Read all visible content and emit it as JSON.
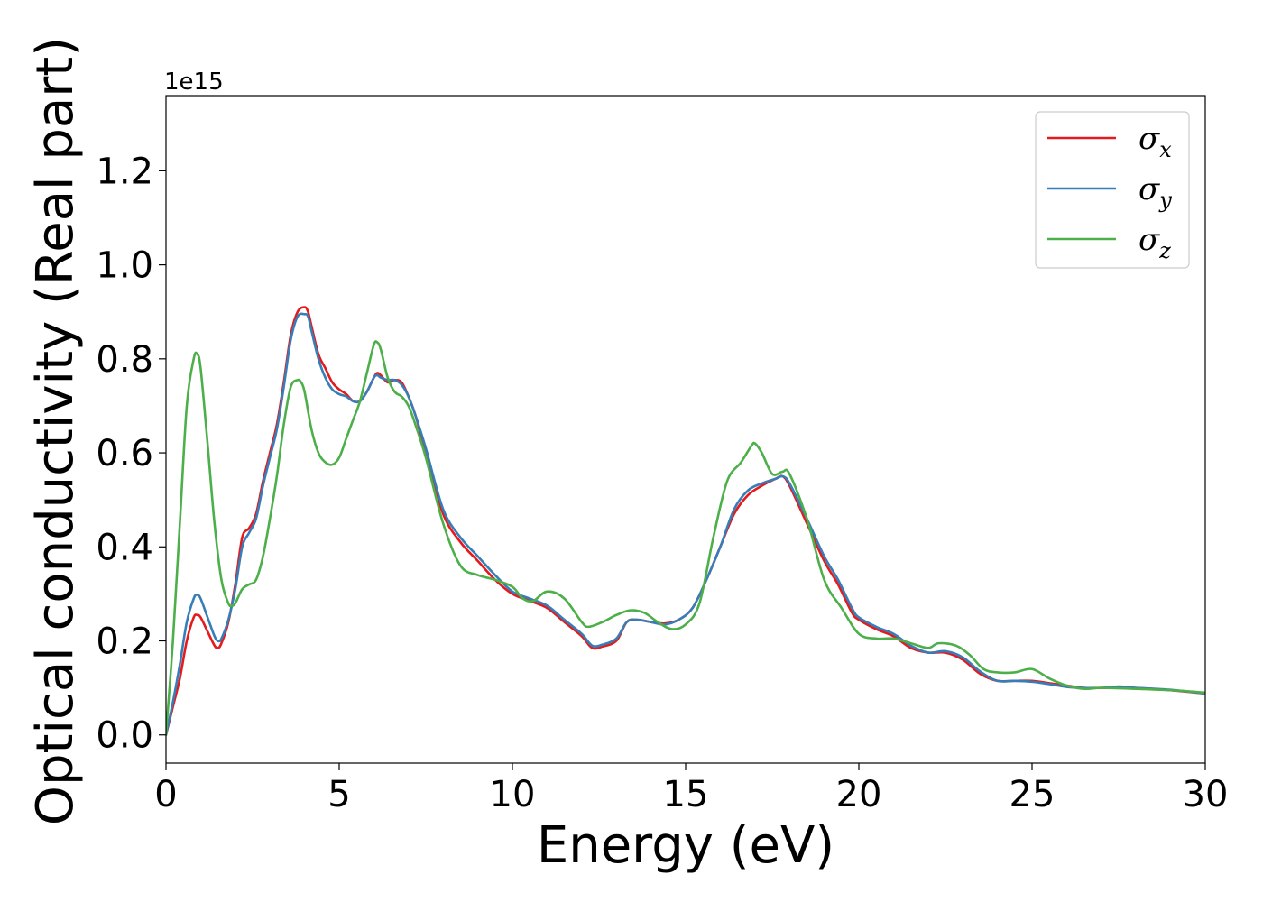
{
  "chart_data": {
    "type": "line",
    "xlabel": "Energy (eV)",
    "ylabel": "Optical conductivity (Real part)",
    "y_offset_label": "1e15",
    "xlim": [
      0,
      30
    ],
    "ylim": [
      -0.06,
      1.36
    ],
    "xticks": [
      0,
      5,
      10,
      15,
      20,
      25,
      30
    ],
    "xtick_labels": [
      "0",
      "5",
      "10",
      "15",
      "20",
      "25",
      "30"
    ],
    "yticks": [
      0.0,
      0.2,
      0.4,
      0.6,
      0.8,
      1.0,
      1.2
    ],
    "ytick_labels": [
      "0.0",
      "0.2",
      "0.4",
      "0.6",
      "0.8",
      "1.0",
      "1.2"
    ],
    "grid": false,
    "legend_position": "top-right",
    "series": [
      {
        "name": "σx",
        "label_base": "σ",
        "label_sub": "x",
        "color": "#e41a1c",
        "x": [
          0,
          0.2,
          0.4,
          0.6,
          0.8,
          0.9,
          1.0,
          1.2,
          1.4,
          1.5,
          1.6,
          1.8,
          2.0,
          2.2,
          2.4,
          2.6,
          2.8,
          3.0,
          3.2,
          3.4,
          3.6,
          3.8,
          4.0,
          4.1,
          4.2,
          4.4,
          4.6,
          4.8,
          5.0,
          5.2,
          5.4,
          5.6,
          5.8,
          6.0,
          6.1,
          6.2,
          6.4,
          6.6,
          6.8,
          7.0,
          7.2,
          7.5,
          8.0,
          8.5,
          9.0,
          9.5,
          10.0,
          10.5,
          11.0,
          11.5,
          12.0,
          12.3,
          12.6,
          13.0,
          13.3,
          13.6,
          14.0,
          14.4,
          14.8,
          15.2,
          15.6,
          16.0,
          16.4,
          16.8,
          17.2,
          17.6,
          17.8,
          18.0,
          18.5,
          19.0,
          19.4,
          19.8,
          20.0,
          20.5,
          21.0,
          21.5,
          22.0,
          22.5,
          23.0,
          23.5,
          24.0,
          24.5,
          25.0,
          25.5,
          26.0,
          26.5,
          27.0,
          27.5,
          28.0,
          29.0,
          30.0
        ],
        "y": [
          0.0,
          0.06,
          0.12,
          0.2,
          0.25,
          0.255,
          0.25,
          0.22,
          0.19,
          0.185,
          0.195,
          0.24,
          0.32,
          0.42,
          0.44,
          0.47,
          0.54,
          0.6,
          0.66,
          0.75,
          0.85,
          0.9,
          0.91,
          0.9,
          0.87,
          0.81,
          0.78,
          0.75,
          0.735,
          0.725,
          0.71,
          0.71,
          0.73,
          0.76,
          0.77,
          0.765,
          0.75,
          0.755,
          0.75,
          0.72,
          0.68,
          0.6,
          0.47,
          0.41,
          0.37,
          0.33,
          0.3,
          0.285,
          0.27,
          0.24,
          0.21,
          0.185,
          0.188,
          0.2,
          0.24,
          0.245,
          0.24,
          0.237,
          0.245,
          0.27,
          0.33,
          0.4,
          0.47,
          0.51,
          0.53,
          0.545,
          0.55,
          0.53,
          0.45,
          0.37,
          0.32,
          0.26,
          0.245,
          0.225,
          0.21,
          0.185,
          0.175,
          0.175,
          0.16,
          0.13,
          0.115,
          0.115,
          0.115,
          0.11,
          0.105,
          0.1,
          0.1,
          0.1,
          0.1,
          0.095,
          0.088
        ]
      },
      {
        "name": "σy",
        "label_base": "σ",
        "label_sub": "y",
        "color": "#377eb8",
        "x": [
          0,
          0.2,
          0.4,
          0.6,
          0.8,
          0.9,
          1.0,
          1.2,
          1.4,
          1.5,
          1.6,
          1.8,
          2.0,
          2.2,
          2.4,
          2.6,
          2.8,
          3.0,
          3.2,
          3.4,
          3.6,
          3.8,
          4.0,
          4.1,
          4.2,
          4.4,
          4.6,
          4.8,
          5.0,
          5.2,
          5.4,
          5.6,
          5.8,
          6.0,
          6.1,
          6.2,
          6.4,
          6.6,
          6.8,
          7.0,
          7.2,
          7.5,
          8.0,
          8.5,
          9.0,
          9.5,
          10.0,
          10.5,
          11.0,
          11.5,
          12.0,
          12.3,
          12.6,
          13.0,
          13.3,
          13.6,
          14.0,
          14.4,
          14.8,
          15.2,
          15.6,
          16.0,
          16.4,
          16.8,
          17.2,
          17.6,
          17.8,
          18.0,
          18.5,
          19.0,
          19.4,
          19.8,
          20.0,
          20.5,
          21.0,
          21.5,
          22.0,
          22.5,
          23.0,
          23.5,
          24.0,
          24.5,
          25.0,
          25.5,
          26.0,
          26.5,
          27.0,
          27.5,
          28.0,
          29.0,
          30.0
        ],
        "y": [
          0.0,
          0.07,
          0.15,
          0.24,
          0.29,
          0.298,
          0.29,
          0.25,
          0.21,
          0.2,
          0.205,
          0.245,
          0.31,
          0.4,
          0.43,
          0.46,
          0.53,
          0.59,
          0.65,
          0.74,
          0.84,
          0.89,
          0.895,
          0.89,
          0.86,
          0.8,
          0.76,
          0.735,
          0.725,
          0.72,
          0.71,
          0.71,
          0.73,
          0.76,
          0.765,
          0.76,
          0.755,
          0.755,
          0.745,
          0.72,
          0.68,
          0.61,
          0.48,
          0.42,
          0.38,
          0.34,
          0.305,
          0.29,
          0.275,
          0.245,
          0.215,
          0.19,
          0.192,
          0.205,
          0.24,
          0.245,
          0.24,
          0.235,
          0.245,
          0.27,
          0.33,
          0.4,
          0.48,
          0.52,
          0.535,
          0.545,
          0.55,
          0.535,
          0.46,
          0.38,
          0.33,
          0.27,
          0.25,
          0.23,
          0.215,
          0.19,
          0.175,
          0.178,
          0.165,
          0.135,
          0.115,
          0.115,
          0.113,
          0.108,
          0.102,
          0.1,
          0.1,
          0.103,
          0.1,
          0.096,
          0.088
        ]
      },
      {
        "name": "σz",
        "label_base": "σ",
        "label_sub": "z",
        "color": "#4daf4a",
        "x": [
          0,
          0.2,
          0.4,
          0.6,
          0.8,
          0.9,
          1.0,
          1.2,
          1.4,
          1.6,
          1.8,
          1.9,
          2.0,
          2.2,
          2.4,
          2.6,
          2.8,
          3.0,
          3.2,
          3.4,
          3.6,
          3.8,
          3.9,
          4.0,
          4.2,
          4.4,
          4.6,
          4.8,
          5.0,
          5.2,
          5.4,
          5.6,
          5.8,
          6.0,
          6.1,
          6.2,
          6.4,
          6.6,
          6.8,
          7.0,
          7.2,
          7.5,
          8.0,
          8.5,
          9.0,
          9.5,
          10.0,
          10.3,
          10.6,
          11.0,
          11.5,
          12.0,
          12.2,
          12.6,
          13.0,
          13.4,
          13.8,
          14.2,
          14.6,
          15.0,
          15.4,
          15.8,
          16.2,
          16.6,
          16.9,
          17.0,
          17.2,
          17.5,
          17.8,
          18.0,
          18.5,
          19.0,
          19.5,
          20.0,
          20.5,
          21.0,
          21.5,
          22.0,
          22.3,
          22.8,
          23.2,
          23.6,
          24.0,
          24.5,
          25.0,
          25.5,
          26.0,
          26.5,
          27.0,
          28.0,
          29.0,
          30.0
        ],
        "y": [
          0.0,
          0.2,
          0.45,
          0.7,
          0.8,
          0.81,
          0.78,
          0.62,
          0.45,
          0.33,
          0.28,
          0.275,
          0.28,
          0.31,
          0.32,
          0.33,
          0.38,
          0.46,
          0.55,
          0.66,
          0.74,
          0.755,
          0.75,
          0.73,
          0.65,
          0.6,
          0.58,
          0.575,
          0.59,
          0.63,
          0.67,
          0.71,
          0.77,
          0.83,
          0.835,
          0.82,
          0.76,
          0.73,
          0.72,
          0.7,
          0.66,
          0.59,
          0.45,
          0.36,
          0.34,
          0.33,
          0.315,
          0.29,
          0.285,
          0.305,
          0.29,
          0.24,
          0.23,
          0.24,
          0.255,
          0.265,
          0.26,
          0.24,
          0.225,
          0.235,
          0.28,
          0.42,
          0.54,
          0.58,
          0.615,
          0.62,
          0.6,
          0.555,
          0.56,
          0.555,
          0.46,
          0.33,
          0.27,
          0.215,
          0.205,
          0.205,
          0.195,
          0.185,
          0.195,
          0.19,
          0.17,
          0.14,
          0.133,
          0.133,
          0.14,
          0.12,
          0.105,
          0.098,
          0.1,
          0.098,
          0.095,
          0.09
        ]
      }
    ]
  }
}
